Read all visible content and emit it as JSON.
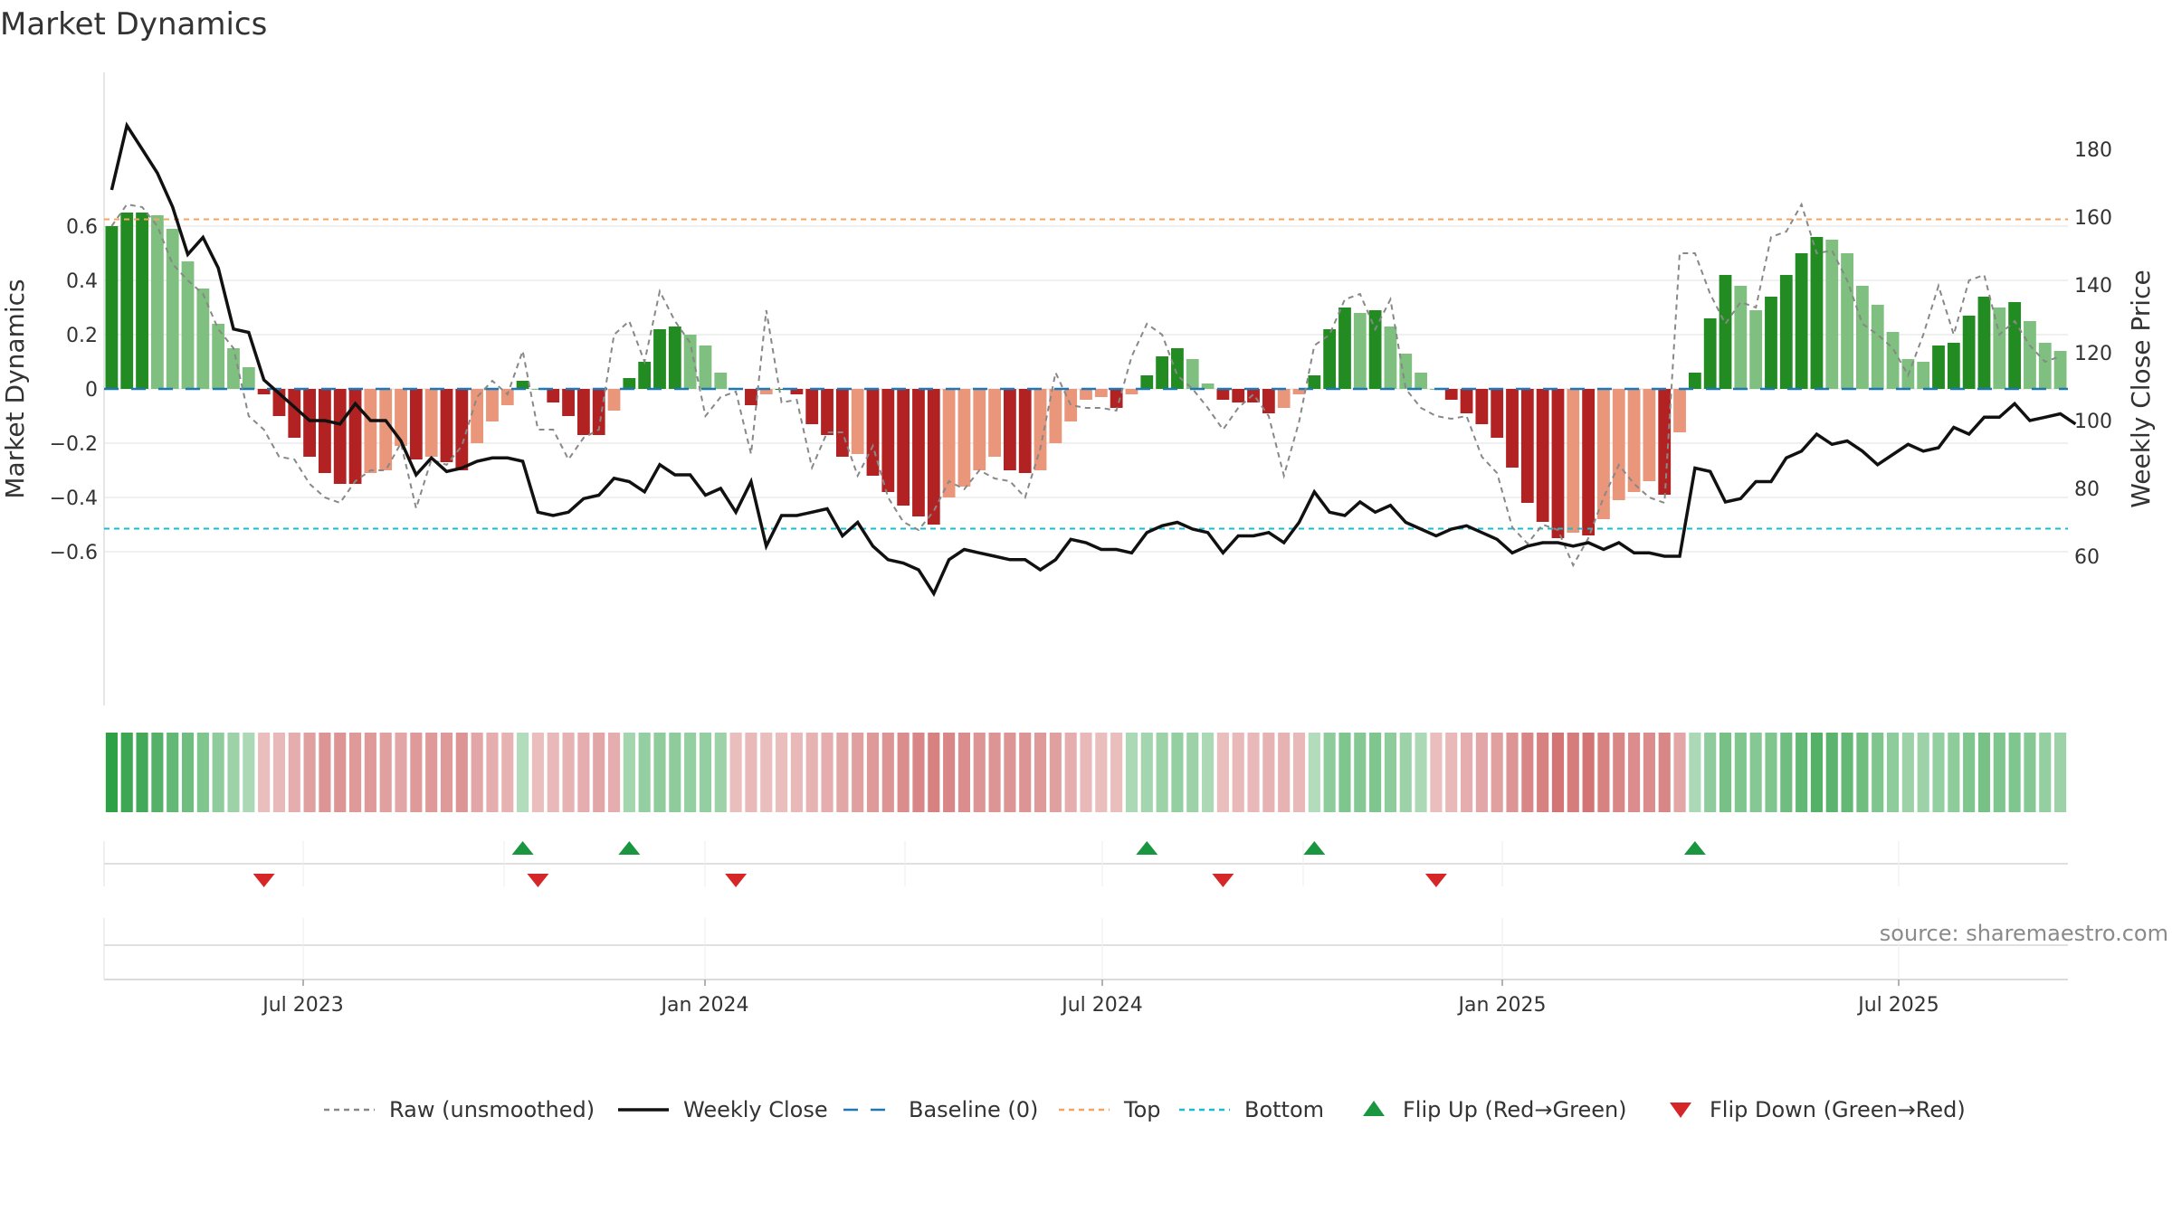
{
  "title": "Market Dynamics",
  "source": "source: sharemaestro.com",
  "colors": {
    "dark_green": "#228b22",
    "light_green": "#7fbf7f",
    "dark_red": "#b22222",
    "light_red": "#e9967a",
    "raw": "#888888",
    "close": "#111111",
    "baseline": "#1f77b4",
    "top": "#f4a460",
    "bottom": "#17becf",
    "flip_up": "#1a9641",
    "flip_down": "#d62728"
  },
  "chart_data": {
    "type": "bar",
    "ylabel": "Market Dynamics",
    "ylabel_right": "Weekly Close Price",
    "ylim": [
      -0.7,
      0.7
    ],
    "ylim_right": [
      40,
      192
    ],
    "yticks": [
      "0.6",
      "0.4",
      "0.2",
      "0",
      "−0.2",
      "−0.4",
      "−0.6"
    ],
    "yticks_right": [
      "180",
      "160",
      "140",
      "120",
      "100",
      "80",
      "60"
    ],
    "x_ticks": [
      "Jul 2023",
      "Jan 2024",
      "Jul 2024",
      "Jan 2025",
      "Jul 2025"
    ],
    "top_level": 0.625,
    "bottom_level": -0.515,
    "baseline": 0,
    "dynamics": [
      0.6,
      0.65,
      0.65,
      0.64,
      0.59,
      0.47,
      0.37,
      0.24,
      0.15,
      0.08,
      -0.02,
      -0.1,
      -0.18,
      -0.25,
      -0.31,
      -0.35,
      -0.35,
      -0.31,
      -0.3,
      -0.21,
      -0.26,
      -0.25,
      -0.27,
      -0.3,
      -0.2,
      -0.12,
      -0.06,
      0.03,
      0.0,
      -0.05,
      -0.1,
      -0.17,
      -0.17,
      -0.08,
      0.04,
      0.1,
      0.22,
      0.23,
      0.2,
      0.16,
      0.06,
      0.0,
      -0.06,
      -0.02,
      0.0,
      -0.02,
      -0.13,
      -0.17,
      -0.25,
      -0.24,
      -0.32,
      -0.38,
      -0.43,
      -0.47,
      -0.5,
      -0.4,
      -0.36,
      -0.3,
      -0.25,
      -0.3,
      -0.31,
      -0.3,
      -0.2,
      -0.12,
      -0.04,
      -0.03,
      -0.07,
      -0.02,
      0.05,
      0.12,
      0.15,
      0.11,
      0.02,
      -0.04,
      -0.05,
      -0.05,
      -0.09,
      -0.07,
      -0.02,
      0.05,
      0.22,
      0.3,
      0.28,
      0.29,
      0.23,
      0.13,
      0.06,
      0.0,
      -0.04,
      -0.09,
      -0.13,
      -0.18,
      -0.29,
      -0.42,
      -0.49,
      -0.55,
      -0.53,
      -0.54,
      -0.48,
      -0.41,
      -0.38,
      -0.34,
      -0.39,
      -0.16,
      0.06,
      0.26,
      0.42,
      0.38,
      0.29,
      0.34,
      0.42,
      0.5,
      0.56,
      0.55,
      0.5,
      0.38,
      0.31,
      0.21,
      0.11,
      0.1,
      0.16,
      0.17,
      0.27,
      0.34,
      0.3,
      0.32,
      0.25,
      0.17,
      0.14
    ],
    "raw": [
      0.6,
      0.68,
      0.67,
      0.6,
      0.46,
      0.4,
      0.35,
      0.22,
      0.15,
      -0.1,
      -0.15,
      -0.25,
      -0.26,
      -0.35,
      -0.4,
      -0.42,
      -0.34,
      -0.3,
      -0.3,
      -0.2,
      -0.44,
      -0.26,
      -0.28,
      -0.21,
      -0.03,
      0.03,
      -0.02,
      0.14,
      -0.15,
      -0.15,
      -0.26,
      -0.18,
      -0.15,
      0.2,
      0.25,
      0.1,
      0.36,
      0.25,
      0.17,
      -0.1,
      -0.03,
      -0.01,
      -0.24,
      0.29,
      -0.05,
      -0.04,
      -0.29,
      -0.16,
      -0.16,
      -0.32,
      -0.21,
      -0.4,
      -0.49,
      -0.52,
      -0.45,
      -0.34,
      -0.37,
      -0.3,
      -0.33,
      -0.34,
      -0.4,
      -0.22,
      0.06,
      -0.06,
      -0.07,
      -0.07,
      -0.08,
      0.12,
      0.24,
      0.2,
      0.05,
      0.0,
      -0.07,
      -0.15,
      -0.07,
      -0.02,
      -0.1,
      -0.32,
      -0.12,
      0.16,
      0.2,
      0.33,
      0.35,
      0.22,
      0.33,
      0.0,
      -0.07,
      -0.1,
      -0.11,
      -0.1,
      -0.25,
      -0.31,
      -0.51,
      -0.57,
      -0.5,
      -0.52,
      -0.65,
      -0.55,
      -0.4,
      -0.28,
      -0.35,
      -0.4,
      -0.42,
      0.5,
      0.5,
      0.35,
      0.24,
      0.32,
      0.3,
      0.56,
      0.58,
      0.68,
      0.5,
      0.51,
      0.4,
      0.24,
      0.2,
      0.15,
      0.05,
      0.2,
      0.38,
      0.2,
      0.4,
      0.42,
      0.2,
      0.25,
      0.16,
      0.1,
      0.12
    ],
    "close": [
      168,
      187,
      180,
      173,
      163,
      149,
      154,
      145,
      127,
      126,
      112,
      108,
      104,
      100,
      100,
      99,
      105,
      100,
      100,
      94,
      84,
      89,
      85,
      86,
      88,
      89,
      89,
      88,
      73,
      72,
      73,
      77,
      78,
      83,
      82,
      79,
      87,
      84,
      84,
      78,
      80,
      73,
      82,
      63,
      72,
      72,
      73,
      74,
      66,
      70,
      63,
      59,
      58,
      56,
      49,
      59,
      62,
      61,
      60,
      59,
      59,
      56,
      59,
      65,
      64,
      62,
      62,
      61,
      67,
      69,
      70,
      68,
      67,
      61,
      66,
      66,
      67,
      64,
      70,
      79,
      73,
      72,
      76,
      73,
      75,
      70,
      68,
      66,
      68,
      69,
      67,
      65,
      61,
      63,
      64,
      64,
      63,
      64,
      62,
      64,
      61,
      61,
      60,
      60,
      86,
      85,
      76,
      77,
      82,
      82,
      89,
      91,
      96,
      93,
      94,
      91,
      87,
      90,
      93,
      91,
      92,
      98,
      96,
      101,
      101,
      105,
      100,
      101,
      102,
      99
    ],
    "strip_values": [
      1,
      0.9,
      0.85,
      0.75,
      0.65,
      0.55,
      0.45,
      0.35,
      0.25,
      0.15,
      -0.1,
      -0.15,
      -0.25,
      -0.35,
      -0.45,
      -0.45,
      -0.4,
      -0.4,
      -0.35,
      -0.3,
      -0.4,
      -0.4,
      -0.4,
      -0.45,
      -0.3,
      -0.25,
      -0.2,
      0.1,
      -0.1,
      -0.15,
      -0.2,
      -0.25,
      -0.3,
      -0.25,
      0.2,
      0.3,
      0.35,
      0.35,
      0.3,
      0.3,
      0.25,
      -0.1,
      -0.15,
      -0.1,
      -0.1,
      -0.15,
      -0.2,
      -0.25,
      -0.3,
      -0.35,
      -0.4,
      -0.45,
      -0.5,
      -0.55,
      -0.6,
      -0.55,
      -0.5,
      -0.45,
      -0.45,
      -0.45,
      -0.45,
      -0.4,
      -0.35,
      -0.25,
      -0.15,
      -0.1,
      -0.1,
      0.15,
      0.2,
      0.25,
      0.3,
      0.25,
      0.15,
      -0.1,
      -0.15,
      -0.15,
      -0.2,
      -0.2,
      -0.15,
      0.1,
      0.35,
      0.45,
      0.4,
      0.45,
      0.35,
      0.25,
      0.15,
      -0.1,
      -0.15,
      -0.25,
      -0.3,
      -0.35,
      -0.45,
      -0.55,
      -0.6,
      -0.7,
      -0.65,
      -0.7,
      -0.6,
      -0.55,
      -0.5,
      -0.5,
      -0.55,
      -0.3,
      0.15,
      0.35,
      0.5,
      0.45,
      0.4,
      0.45,
      0.55,
      0.65,
      0.75,
      0.7,
      0.65,
      0.55,
      0.45,
      0.35,
      0.25,
      0.25,
      0.3,
      0.35,
      0.45,
      0.5,
      0.45,
      0.45,
      0.4,
      0.3,
      0.25
    ],
    "flip_up_weeks": [
      27,
      34,
      68,
      79,
      104
    ],
    "flip_down_weeks": [
      10,
      28,
      41,
      73,
      87
    ],
    "legend": [
      {
        "label": "Raw (unsmoothed)",
        "kind": "dashed",
        "color": "#888888"
      },
      {
        "label": "Weekly Close",
        "kind": "solid",
        "color": "#111111"
      },
      {
        "label": "Baseline (0)",
        "kind": "longdash",
        "color": "#1f77b4"
      },
      {
        "label": "Top",
        "kind": "dashed",
        "color": "#f4a460"
      },
      {
        "label": "Bottom",
        "kind": "dashed",
        "color": "#17becf"
      },
      {
        "label": "Flip Up (Red→Green)",
        "kind": "tri-up",
        "color": "#1a9641"
      },
      {
        "label": "Flip Down (Green→Red)",
        "kind": "tri-down",
        "color": "#d62728"
      }
    ]
  }
}
